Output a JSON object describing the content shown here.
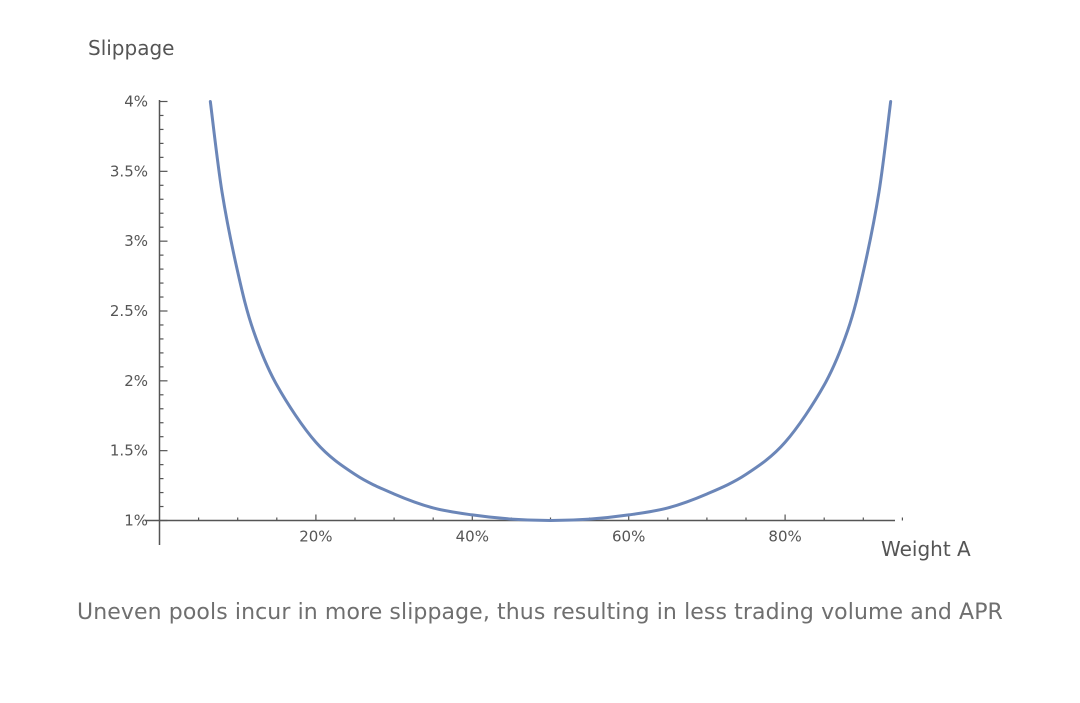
{
  "chart_data": {
    "type": "line",
    "title": "",
    "xlabel": "Weight A",
    "ylabel": "Slippage",
    "xlim": [
      0,
      1
    ],
    "ylim": [
      1,
      4
    ],
    "x_ticks": [
      {
        "value": 0.2,
        "label": "20%"
      },
      {
        "value": 0.4,
        "label": "40%"
      },
      {
        "value": 0.6,
        "label": "60%"
      },
      {
        "value": 0.8,
        "label": "80%"
      }
    ],
    "y_ticks": [
      {
        "value": 1,
        "label": "1%"
      },
      {
        "value": 1.5,
        "label": "1.5%"
      },
      {
        "value": 2,
        "label": "2%"
      },
      {
        "value": 2.5,
        "label": "2.5%"
      },
      {
        "value": 3,
        "label": "3%"
      },
      {
        "value": 3.5,
        "label": "3.5%"
      },
      {
        "value": 4,
        "label": "4%"
      }
    ],
    "grid": false,
    "line_color": "#6b86b8",
    "series": [
      {
        "x": [
          0.065,
          0.08,
          0.1,
          0.12,
          0.15,
          0.2,
          0.25,
          0.3,
          0.35,
          0.4,
          0.45,
          0.5,
          0.55,
          0.6,
          0.65,
          0.7,
          0.75,
          0.8,
          0.85,
          0.88,
          0.9,
          0.92,
          0.935
        ],
        "values": [
          4.0,
          3.35,
          2.78,
          2.36,
          1.97,
          1.56,
          1.33,
          1.19,
          1.09,
          1.04,
          1.01,
          1.0,
          1.01,
          1.04,
          1.09,
          1.19,
          1.33,
          1.56,
          1.97,
          2.36,
          2.78,
          3.35,
          4.0
        ]
      }
    ]
  },
  "caption": "Uneven pools incur in more slippage, thus resulting in less trading volume and APR"
}
